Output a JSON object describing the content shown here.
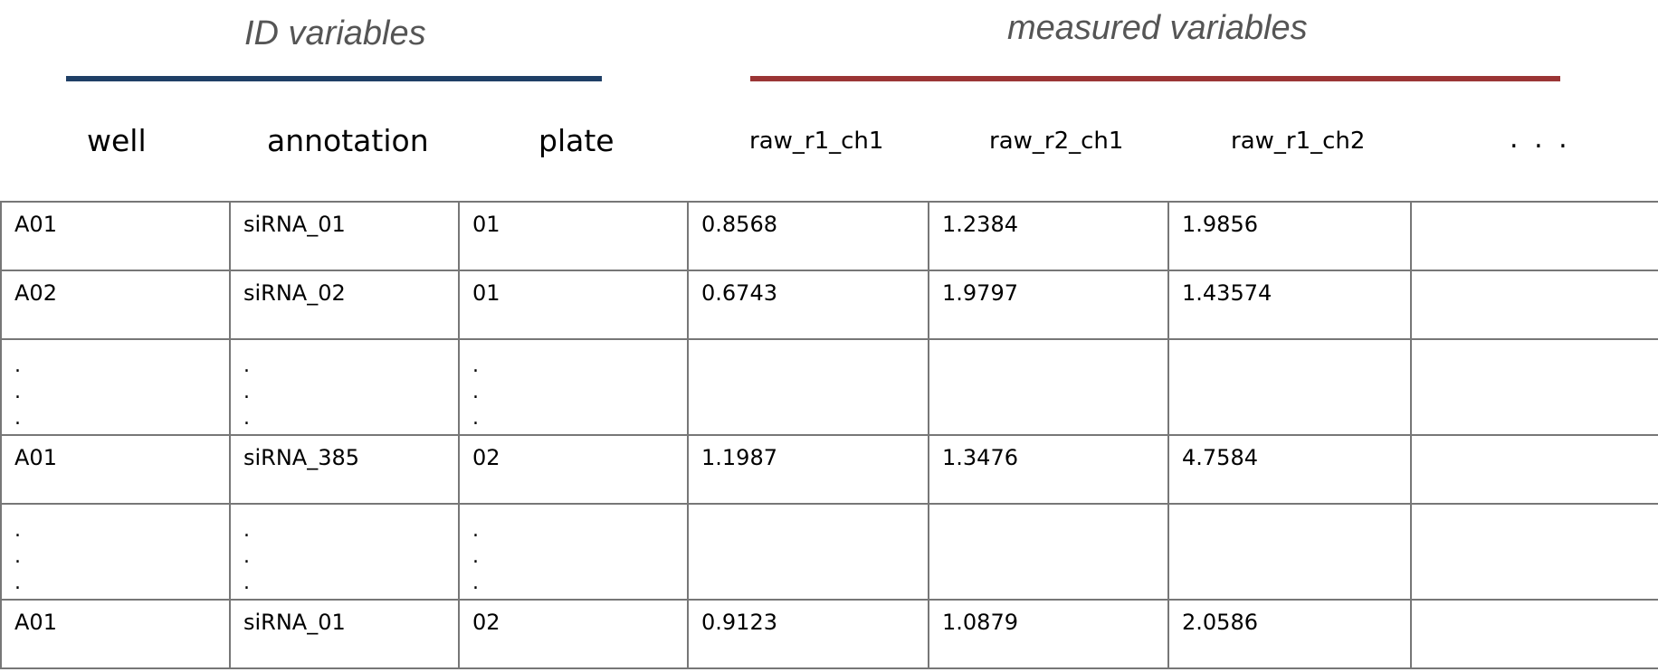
{
  "groups": {
    "id_title": "ID variables",
    "measured_title": "measured variables",
    "id_color": "#1f3f66",
    "measured_color": "#9b3535"
  },
  "headers": {
    "well": "well",
    "annotation": "annotation",
    "plate": "plate",
    "raw_r1_ch1": "raw_r1_ch1",
    "raw_r2_ch1": "raw_r2_ch1",
    "raw_r1_ch2": "raw_r1_ch2",
    "more": ". . ."
  },
  "rows": [
    {
      "well": "A01",
      "annotation": "siRNA_01",
      "plate": "01",
      "raw_r1_ch1": "0.8568",
      "raw_r2_ch1": "1.2384",
      "raw_r1_ch2": "1.9856"
    },
    {
      "well": "A02",
      "annotation": "siRNA_02",
      "plate": "01",
      "raw_r1_ch1": "0.6743",
      "raw_r2_ch1": "1.9797",
      "raw_r1_ch2": "1.43574"
    },
    {
      "well": ".\n.\n.",
      "annotation": ".\n.\n.",
      "plate": ".\n.\n."
    },
    {
      "well": "A01",
      "annotation": "siRNA_385",
      "plate": "02",
      "raw_r1_ch1": "1.1987",
      "raw_r2_ch1": "1.3476",
      "raw_r1_ch2": "4.7584"
    },
    {
      "well": ".\n.\n.",
      "annotation": ".\n.\n.",
      "plate": ".\n.\n."
    },
    {
      "well": "A01",
      "annotation": "siRNA_01",
      "plate": "02",
      "raw_r1_ch1": "0.9123",
      "raw_r2_ch1": "1.0879",
      "raw_r1_ch2": "2.0586"
    }
  ]
}
